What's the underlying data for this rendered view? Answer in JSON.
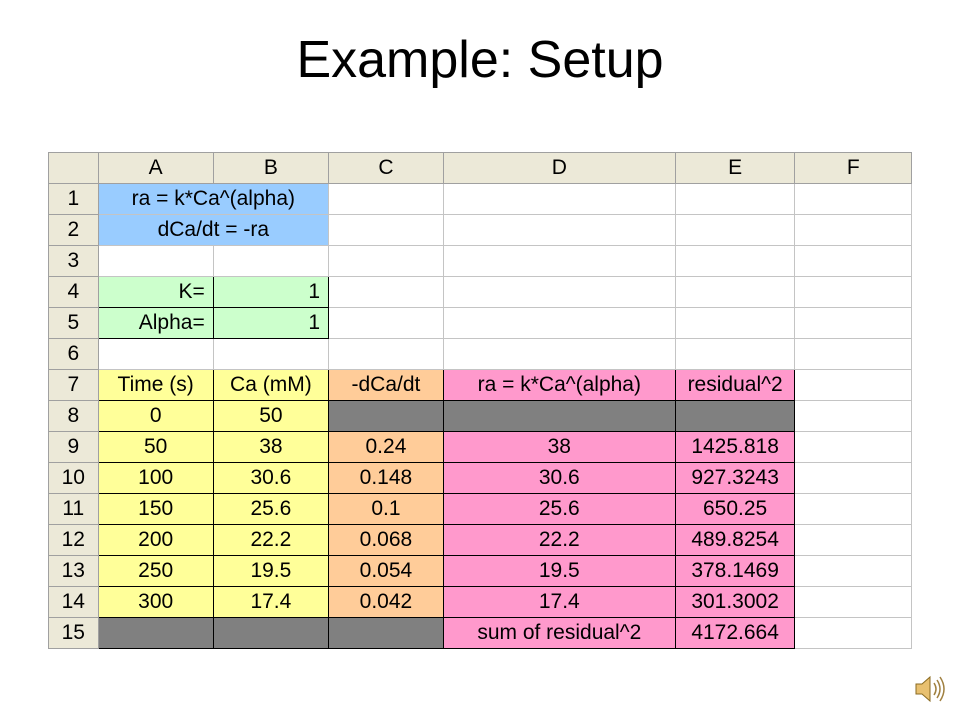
{
  "slide": {
    "title": "Example: Setup"
  },
  "spreadsheet": {
    "column_headers": [
      "A",
      "B",
      "C",
      "D",
      "E",
      "F"
    ],
    "row_headers": [
      "1",
      "2",
      "3",
      "4",
      "5",
      "6",
      "7",
      "8",
      "9",
      "10",
      "11",
      "12",
      "13",
      "14",
      "15"
    ],
    "cells": {
      "r1": "ra = k*Ca^(alpha)",
      "r2": "dCa/dt = -ra",
      "r4": {
        "label": "K=",
        "value": "1"
      },
      "r5": {
        "label": "Alpha=",
        "value": "1"
      },
      "r7": [
        "Time (s)",
        "Ca (mM)",
        "-dCa/dt",
        "ra = k*Ca^(alpha)",
        "residual^2"
      ],
      "r8": [
        "0",
        "50"
      ],
      "r9": [
        "50",
        "38",
        "0.24",
        "38",
        "1425.818"
      ],
      "r10": [
        "100",
        "30.6",
        "0.148",
        "30.6",
        "927.3243"
      ],
      "r11": [
        "150",
        "25.6",
        "0.1",
        "25.6",
        "650.25"
      ],
      "r12": [
        "200",
        "22.2",
        "0.068",
        "22.2",
        "489.8254"
      ],
      "r13": [
        "250",
        "19.5",
        "0.054",
        "19.5",
        "378.1469"
      ],
      "r14": [
        "300",
        "17.4",
        "0.042",
        "17.4",
        "301.3002"
      ],
      "r15": {
        "label": "sum of residual^2",
        "value": "4172.664"
      }
    },
    "colors": {
      "header": "#ece9d8",
      "formula": "#99ccff",
      "parameter": "#ccffcc",
      "data": "#ffff99",
      "derivative": "#ffcc99",
      "model": "#ff99cc",
      "blank_gray": "#808080"
    }
  },
  "icons": {
    "audio": "speaker-icon"
  }
}
